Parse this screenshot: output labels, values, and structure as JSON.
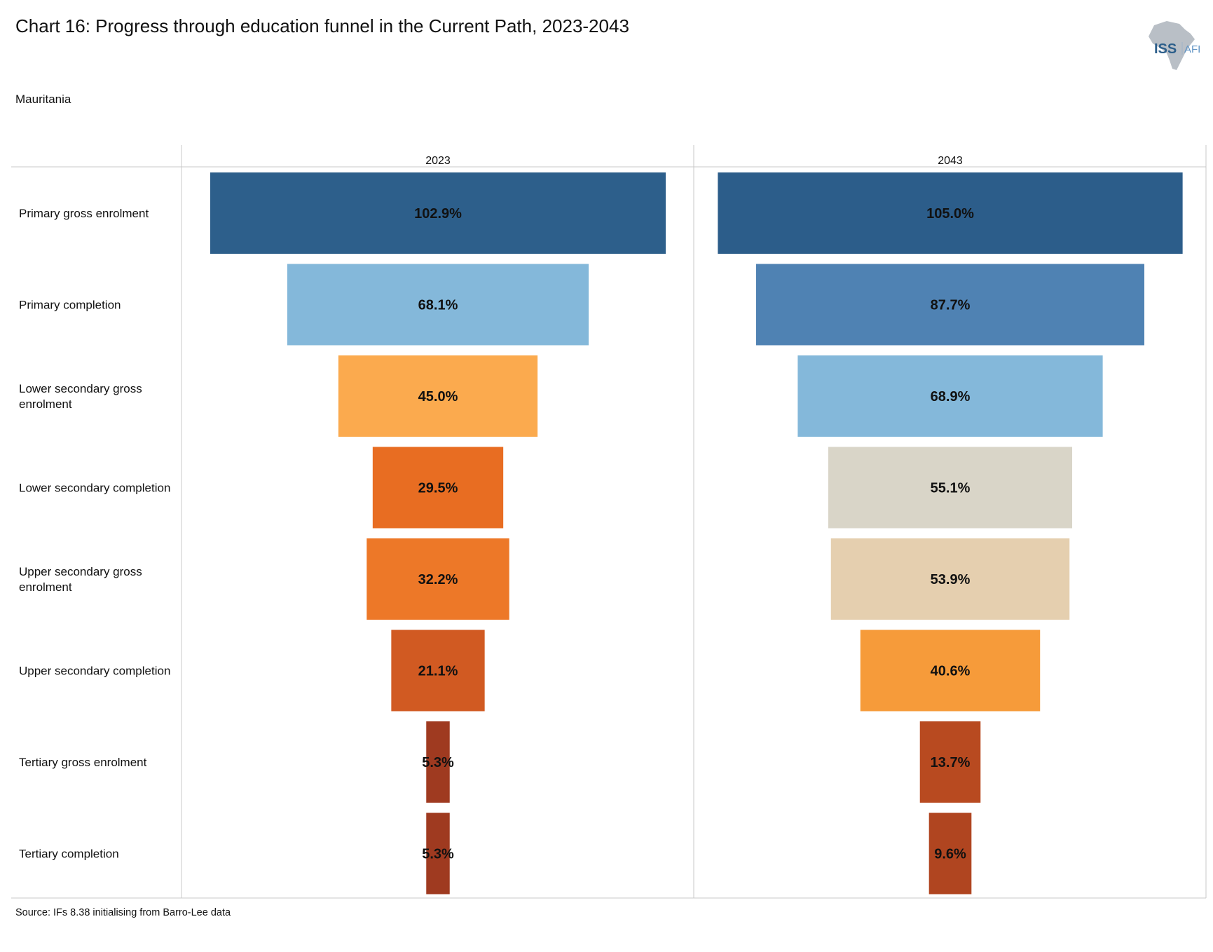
{
  "header": {
    "title": "Chart 16: Progress through education funnel in the Current Path, 2023-2043",
    "subtitle": "Mauritania",
    "source": "Source: IFs 8.38 initialising from Barro-Lee data",
    "logo_text_main": "ISS",
    "logo_text_sub": "AFI"
  },
  "chart_data": {
    "type": "bar",
    "orientation": "horizontal-funnel",
    "title": "Chart 16: Progress through education funnel in the Current Path, 2023-2043",
    "subtitle": "Mauritania",
    "categories": [
      "Primary gross enrolment",
      "Primary completion",
      "Lower secondary gross enrolment",
      "Lower secondary completion",
      "Upper secondary gross enrolment",
      "Upper secondary completion",
      "Tertiary gross enrolment",
      "Tertiary completion"
    ],
    "series": [
      {
        "name": "2023",
        "values": [
          102.9,
          68.1,
          45.0,
          29.5,
          32.2,
          21.1,
          5.3,
          5.3
        ],
        "labels": [
          "102.9%",
          "68.1%",
          "45.0%",
          "29.5%",
          "32.2%",
          "21.1%",
          "5.3%",
          "5.3%"
        ],
        "colors": [
          "#2d5f8b",
          "#84b8da",
          "#fbaa4e",
          "#e86d22",
          "#ed7828",
          "#d15a22",
          "#9f3a20",
          "#9f3a20"
        ]
      },
      {
        "name": "2043",
        "values": [
          105.0,
          87.7,
          68.9,
          55.1,
          53.9,
          40.6,
          13.7,
          9.6
        ],
        "labels": [
          "105.0%",
          "87.7%",
          "68.9%",
          "55.1%",
          "53.9%",
          "40.6%",
          "13.7%",
          "9.6%"
        ],
        "colors": [
          "#2c5d8a",
          "#4f82b3",
          "#84b8da",
          "#d9d5c8",
          "#e5cfaf",
          "#f69b3a",
          "#b84a20",
          "#b04520"
        ]
      }
    ],
    "value_unit": "%",
    "grid": false
  }
}
